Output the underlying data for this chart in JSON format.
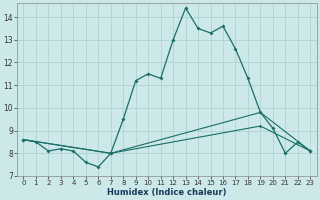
{
  "xlabel": "Humidex (Indice chaleur)",
  "ylabel": "",
  "xlim": [
    -0.5,
    23.5
  ],
  "ylim": [
    7,
    14.6
  ],
  "yticks": [
    7,
    8,
    9,
    10,
    11,
    12,
    13,
    14
  ],
  "xticks": [
    0,
    1,
    2,
    3,
    4,
    5,
    6,
    7,
    8,
    9,
    10,
    11,
    12,
    13,
    14,
    15,
    16,
    17,
    18,
    19,
    20,
    21,
    22,
    23
  ],
  "bg_color": "#cce8e8",
  "grid_color": "#aacece",
  "line_color": "#1a6e6a",
  "line1_x": [
    0,
    1,
    2,
    3,
    4,
    5,
    6,
    7,
    8,
    9,
    10,
    11,
    12,
    13,
    14,
    15,
    16,
    17,
    18,
    19,
    20,
    21,
    22,
    23
  ],
  "line1_y": [
    8.6,
    8.5,
    8.1,
    8.2,
    8.1,
    7.6,
    7.4,
    8.0,
    9.5,
    11.2,
    11.5,
    11.3,
    13.0,
    14.4,
    13.5,
    13.3,
    13.6,
    12.6,
    11.3,
    9.8,
    9.1,
    8.0,
    8.5,
    8.1
  ],
  "line2_x": [
    0,
    7,
    19,
    23
  ],
  "line2_y": [
    8.6,
    8.0,
    9.8,
    8.1
  ],
  "line3_x": [
    0,
    7,
    19,
    23
  ],
  "line3_y": [
    8.6,
    8.0,
    9.2,
    8.1
  ]
}
